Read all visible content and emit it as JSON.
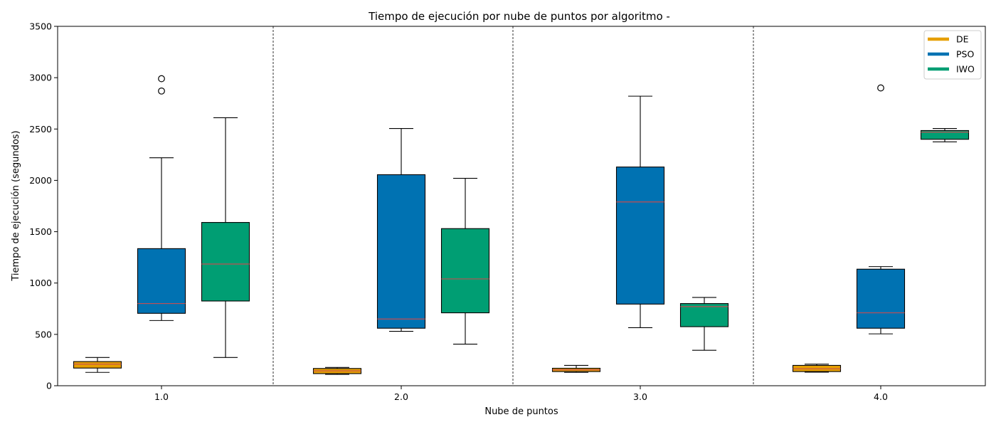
{
  "chart_data": {
    "type": "box",
    "title": "Tiempo de ejecución por nube de puntos por algoritmo -",
    "xlabel": "Nube de puntos",
    "ylabel": "Tiempo de ejecución (segundos)",
    "ylim": [
      0,
      3500
    ],
    "yticks": [
      0,
      500,
      1000,
      1500,
      2000,
      2500,
      3000,
      3500
    ],
    "categories": [
      "1.0",
      "2.0",
      "3.0",
      "4.0"
    ],
    "legend_position": "top-right",
    "grid": false,
    "series": [
      {
        "name": "DE",
        "color": "#E69F00",
        "boxes": [
          {
            "whisker_low": 130,
            "q1": 172,
            "median": 210,
            "q3": 235,
            "whisker_high": 275,
            "outliers": []
          },
          {
            "whisker_low": 110,
            "q1": 118,
            "median": 145,
            "q3": 168,
            "whisker_high": 178,
            "outliers": []
          },
          {
            "whisker_low": 130,
            "q1": 138,
            "median": 155,
            "q3": 170,
            "whisker_high": 198,
            "outliers": []
          },
          {
            "whisker_low": 132,
            "q1": 138,
            "median": 165,
            "q3": 198,
            "whisker_high": 210,
            "outliers": []
          }
        ]
      },
      {
        "name": "PSO",
        "color": "#0072B2",
        "boxes": [
          {
            "whisker_low": 635,
            "q1": 705,
            "median": 800,
            "q3": 1335,
            "whisker_high": 2220,
            "outliers": [
              2870,
              2990
            ]
          },
          {
            "whisker_low": 530,
            "q1": 560,
            "median": 650,
            "q3": 2055,
            "whisker_high": 2505,
            "outliers": []
          },
          {
            "whisker_low": 565,
            "q1": 795,
            "median": 1790,
            "q3": 2130,
            "whisker_high": 2820,
            "outliers": []
          },
          {
            "whisker_low": 505,
            "q1": 560,
            "median": 710,
            "q3": 1135,
            "whisker_high": 1160,
            "outliers": [
              2900
            ]
          }
        ]
      },
      {
        "name": "IWO",
        "color": "#009E73",
        "boxes": [
          {
            "whisker_low": 275,
            "q1": 825,
            "median": 1185,
            "q3": 1590,
            "whisker_high": 2610,
            "outliers": []
          },
          {
            "whisker_low": 405,
            "q1": 710,
            "median": 1040,
            "q3": 1530,
            "whisker_high": 2020,
            "outliers": []
          },
          {
            "whisker_low": 345,
            "q1": 575,
            "median": 770,
            "q3": 800,
            "whisker_high": 860,
            "outliers": []
          },
          {
            "whisker_low": 2375,
            "q1": 2400,
            "median": 2470,
            "q3": 2485,
            "whisker_high": 2505,
            "outliers": []
          }
        ]
      }
    ]
  }
}
